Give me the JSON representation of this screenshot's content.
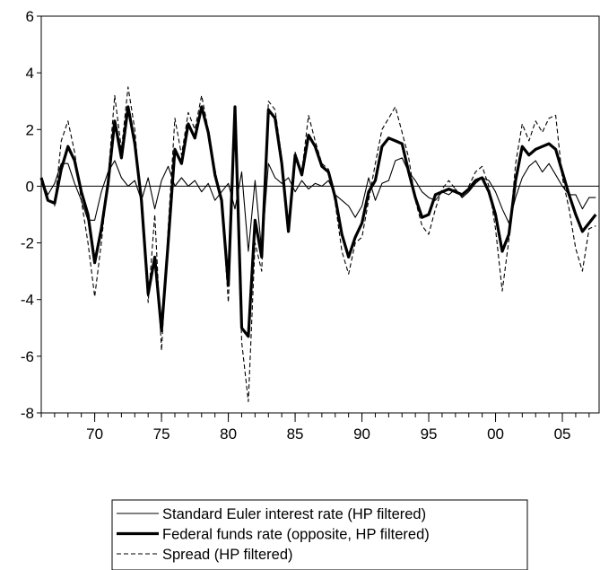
{
  "chart_data": {
    "type": "line",
    "title": "",
    "xlabel": "",
    "ylabel": "",
    "xlim": [
      1966.0,
      2007.75
    ],
    "ylim": [
      -8,
      6
    ],
    "x_ticks": [
      1970,
      1975,
      1980,
      1985,
      1990,
      1995,
      2000,
      2005
    ],
    "x_tick_labels": [
      "70",
      "75",
      "80",
      "85",
      "90",
      "95",
      "00",
      "05"
    ],
    "y_ticks": [
      -8,
      -6,
      -4,
      -2,
      0,
      2,
      4,
      6
    ],
    "y_tick_labels": [
      "-8",
      "-6",
      "-4",
      "-2",
      "0",
      "2",
      "4",
      "6"
    ],
    "zero_line": true,
    "grid": false,
    "legend_position": "bottom",
    "series": [
      {
        "name": "Standard Euler interest rate (HP filtered)",
        "style": "thin-solid",
        "points": [
          [
            1966.0,
            0.3
          ],
          [
            1966.5,
            -0.3
          ],
          [
            1967.0,
            0.1
          ],
          [
            1967.5,
            0.8
          ],
          [
            1968.0,
            0.8
          ],
          [
            1968.5,
            0.1
          ],
          [
            1969.0,
            -0.5
          ],
          [
            1969.5,
            -1.2
          ],
          [
            1970.0,
            -1.2
          ],
          [
            1970.5,
            -0.2
          ],
          [
            1971.0,
            0.5
          ],
          [
            1971.5,
            0.9
          ],
          [
            1972.0,
            0.3
          ],
          [
            1972.5,
            0.0
          ],
          [
            1973.0,
            0.2
          ],
          [
            1973.5,
            -0.5
          ],
          [
            1974.0,
            0.3
          ],
          [
            1974.5,
            -0.8
          ],
          [
            1975.0,
            0.2
          ],
          [
            1975.5,
            0.7
          ],
          [
            1976.0,
            0.0
          ],
          [
            1976.5,
            0.3
          ],
          [
            1977.0,
            0.0
          ],
          [
            1977.5,
            0.2
          ],
          [
            1978.0,
            -0.2
          ],
          [
            1978.5,
            0.1
          ],
          [
            1979.0,
            -0.5
          ],
          [
            1979.5,
            -0.2
          ],
          [
            1980.0,
            0.1
          ],
          [
            1980.5,
            -0.8
          ],
          [
            1981.0,
            0.5
          ],
          [
            1981.5,
            -2.3
          ],
          [
            1982.0,
            0.2
          ],
          [
            1982.5,
            -2.3
          ],
          [
            1983.0,
            0.8
          ],
          [
            1983.5,
            0.3
          ],
          [
            1984.0,
            0.1
          ],
          [
            1984.5,
            0.3
          ],
          [
            1985.0,
            -0.2
          ],
          [
            1985.5,
            0.2
          ],
          [
            1986.0,
            -0.1
          ],
          [
            1986.5,
            0.1
          ],
          [
            1987.0,
            0.0
          ],
          [
            1987.5,
            0.2
          ],
          [
            1988.0,
            -0.3
          ],
          [
            1988.5,
            -0.5
          ],
          [
            1989.0,
            -0.7
          ],
          [
            1989.5,
            -1.1
          ],
          [
            1990.0,
            -0.7
          ],
          [
            1990.5,
            0.3
          ],
          [
            1991.0,
            -0.5
          ],
          [
            1991.5,
            0.1
          ],
          [
            1992.0,
            0.2
          ],
          [
            1992.5,
            0.9
          ],
          [
            1993.0,
            1.0
          ],
          [
            1993.5,
            0.5
          ],
          [
            1994.0,
            0.2
          ],
          [
            1994.5,
            -0.2
          ],
          [
            1995.0,
            -0.4
          ],
          [
            1995.5,
            -0.5
          ],
          [
            1996.0,
            -0.2
          ],
          [
            1996.5,
            -0.3
          ],
          [
            1997.0,
            -0.1
          ],
          [
            1997.5,
            -0.4
          ],
          [
            1998.0,
            -0.2
          ],
          [
            1998.5,
            0.1
          ],
          [
            1999.0,
            0.3
          ],
          [
            1999.5,
            0.2
          ],
          [
            2000.0,
            -0.2
          ],
          [
            2000.5,
            -0.8
          ],
          [
            2001.0,
            -1.3
          ],
          [
            2001.5,
            -0.4
          ],
          [
            2002.0,
            0.3
          ],
          [
            2002.5,
            0.7
          ],
          [
            2003.0,
            0.9
          ],
          [
            2003.5,
            0.5
          ],
          [
            2004.0,
            0.8
          ],
          [
            2004.5,
            0.4
          ],
          [
            2005.0,
            0.0
          ],
          [
            2005.5,
            -0.3
          ],
          [
            2006.0,
            -0.3
          ],
          [
            2006.5,
            -0.8
          ],
          [
            2007.0,
            -0.4
          ],
          [
            2007.5,
            -0.4
          ]
        ]
      },
      {
        "name": "Federal funds rate (opposite, HP filtered)",
        "style": "thick-solid",
        "points": [
          [
            1966.0,
            0.3
          ],
          [
            1966.5,
            -0.5
          ],
          [
            1967.0,
            -0.6
          ],
          [
            1967.5,
            0.6
          ],
          [
            1968.0,
            1.4
          ],
          [
            1968.5,
            0.9
          ],
          [
            1969.0,
            -0.2
          ],
          [
            1969.5,
            -1.0
          ],
          [
            1970.0,
            -2.7
          ],
          [
            1970.5,
            -1.5
          ],
          [
            1971.0,
            0.1
          ],
          [
            1971.5,
            2.3
          ],
          [
            1972.0,
            1.0
          ],
          [
            1972.5,
            2.8
          ],
          [
            1973.0,
            1.5
          ],
          [
            1973.5,
            -0.5
          ],
          [
            1974.0,
            -3.8
          ],
          [
            1974.5,
            -2.5
          ],
          [
            1975.0,
            -5.1
          ],
          [
            1975.5,
            -2.0
          ],
          [
            1976.0,
            1.3
          ],
          [
            1976.5,
            0.8
          ],
          [
            1977.0,
            2.2
          ],
          [
            1977.5,
            1.7
          ],
          [
            1978.0,
            2.8
          ],
          [
            1978.5,
            1.9
          ],
          [
            1979.0,
            0.4
          ],
          [
            1979.5,
            -0.5
          ],
          [
            1980.0,
            -3.5
          ],
          [
            1980.5,
            2.8
          ],
          [
            1981.0,
            -5.0
          ],
          [
            1981.5,
            -5.3
          ],
          [
            1982.0,
            -1.2
          ],
          [
            1982.5,
            -2.5
          ],
          [
            1983.0,
            2.7
          ],
          [
            1983.5,
            2.4
          ],
          [
            1984.0,
            0.8
          ],
          [
            1984.5,
            -1.6
          ],
          [
            1985.0,
            1.1
          ],
          [
            1985.5,
            0.4
          ],
          [
            1986.0,
            1.8
          ],
          [
            1986.5,
            1.4
          ],
          [
            1987.0,
            0.7
          ],
          [
            1987.5,
            0.5
          ],
          [
            1988.0,
            -0.4
          ],
          [
            1988.5,
            -1.7
          ],
          [
            1989.0,
            -2.5
          ],
          [
            1989.5,
            -1.8
          ],
          [
            1990.0,
            -1.3
          ],
          [
            1990.5,
            -0.2
          ],
          [
            1991.0,
            0.2
          ],
          [
            1991.5,
            1.4
          ],
          [
            1992.0,
            1.7
          ],
          [
            1992.5,
            1.6
          ],
          [
            1993.0,
            1.5
          ],
          [
            1993.5,
            0.5
          ],
          [
            1994.0,
            -0.4
          ],
          [
            1994.5,
            -1.1
          ],
          [
            1995.0,
            -1.0
          ],
          [
            1995.5,
            -0.3
          ],
          [
            1996.0,
            -0.2
          ],
          [
            1996.5,
            -0.1
          ],
          [
            1997.0,
            -0.2
          ],
          [
            1997.5,
            -0.3
          ],
          [
            1998.0,
            -0.1
          ],
          [
            1998.5,
            0.2
          ],
          [
            1999.0,
            0.3
          ],
          [
            1999.5,
            -0.2
          ],
          [
            2000.0,
            -1.0
          ],
          [
            2000.5,
            -2.3
          ],
          [
            2001.0,
            -1.7
          ],
          [
            2001.5,
            0.2
          ],
          [
            2002.0,
            1.4
          ],
          [
            2002.5,
            1.1
          ],
          [
            2003.0,
            1.3
          ],
          [
            2003.5,
            1.4
          ],
          [
            2004.0,
            1.5
          ],
          [
            2004.5,
            1.3
          ],
          [
            2005.0,
            0.5
          ],
          [
            2005.5,
            -0.3
          ],
          [
            2006.0,
            -1.0
          ],
          [
            2006.5,
            -1.6
          ],
          [
            2007.0,
            -1.3
          ],
          [
            2007.5,
            -1.0
          ]
        ]
      },
      {
        "name": "Spread  (HP filtered)",
        "style": "dashed",
        "points": [
          [
            1966.0,
            0.2
          ],
          [
            1966.5,
            -0.4
          ],
          [
            1967.0,
            -0.7
          ],
          [
            1967.5,
            1.6
          ],
          [
            1968.0,
            2.3
          ],
          [
            1968.5,
            1.2
          ],
          [
            1969.0,
            -0.5
          ],
          [
            1969.5,
            -2.0
          ],
          [
            1970.0,
            -3.9
          ],
          [
            1970.5,
            -2.0
          ],
          [
            1971.0,
            0.3
          ],
          [
            1971.5,
            3.2
          ],
          [
            1972.0,
            1.3
          ],
          [
            1972.5,
            3.5
          ],
          [
            1973.0,
            2.0
          ],
          [
            1973.5,
            -0.8
          ],
          [
            1974.0,
            -4.1
          ],
          [
            1974.5,
            -1.0
          ],
          [
            1975.0,
            -5.8
          ],
          [
            1975.5,
            -1.5
          ],
          [
            1976.0,
            2.4
          ],
          [
            1976.5,
            1.1
          ],
          [
            1977.0,
            2.6
          ],
          [
            1977.5,
            2.0
          ],
          [
            1978.0,
            3.2
          ],
          [
            1978.5,
            2.0
          ],
          [
            1979.0,
            0.6
          ],
          [
            1979.5,
            -0.6
          ],
          [
            1980.0,
            -4.1
          ],
          [
            1980.5,
            2.3
          ],
          [
            1981.0,
            -5.5
          ],
          [
            1981.5,
            -7.6
          ],
          [
            1982.0,
            -2.0
          ],
          [
            1982.5,
            -3.0
          ],
          [
            1983.0,
            3.0
          ],
          [
            1983.5,
            2.7
          ],
          [
            1984.0,
            1.0
          ],
          [
            1984.5,
            -1.4
          ],
          [
            1985.0,
            1.2
          ],
          [
            1985.5,
            0.5
          ],
          [
            1986.0,
            2.5
          ],
          [
            1986.5,
            1.6
          ],
          [
            1987.0,
            0.8
          ],
          [
            1987.5,
            0.6
          ],
          [
            1988.0,
            -0.6
          ],
          [
            1988.5,
            -2.3
          ],
          [
            1989.0,
            -3.1
          ],
          [
            1989.5,
            -2.0
          ],
          [
            1990.0,
            -1.8
          ],
          [
            1990.5,
            -0.5
          ],
          [
            1991.0,
            0.8
          ],
          [
            1991.5,
            2.0
          ],
          [
            1992.0,
            2.4
          ],
          [
            1992.5,
            2.8
          ],
          [
            1993.0,
            1.9
          ],
          [
            1993.5,
            1.0
          ],
          [
            1994.0,
            -0.5
          ],
          [
            1994.5,
            -1.4
          ],
          [
            1995.0,
            -1.7
          ],
          [
            1995.5,
            -0.8
          ],
          [
            1996.0,
            -0.1
          ],
          [
            1996.5,
            0.2
          ],
          [
            1997.0,
            -0.1
          ],
          [
            1997.5,
            -0.4
          ],
          [
            1998.0,
            0.0
          ],
          [
            1998.5,
            0.5
          ],
          [
            1999.0,
            0.7
          ],
          [
            1999.5,
            0.0
          ],
          [
            2000.0,
            -1.5
          ],
          [
            2000.5,
            -3.7
          ],
          [
            2001.0,
            -1.9
          ],
          [
            2001.5,
            0.8
          ],
          [
            2002.0,
            2.2
          ],
          [
            2002.5,
            1.6
          ],
          [
            2003.0,
            2.3
          ],
          [
            2003.5,
            1.9
          ],
          [
            2004.0,
            2.4
          ],
          [
            2004.5,
            2.5
          ],
          [
            2005.0,
            0.3
          ],
          [
            2005.5,
            -0.8
          ],
          [
            2006.0,
            -2.2
          ],
          [
            2006.5,
            -3.0
          ],
          [
            2007.0,
            -1.5
          ],
          [
            2007.5,
            -1.4
          ]
        ]
      }
    ]
  }
}
